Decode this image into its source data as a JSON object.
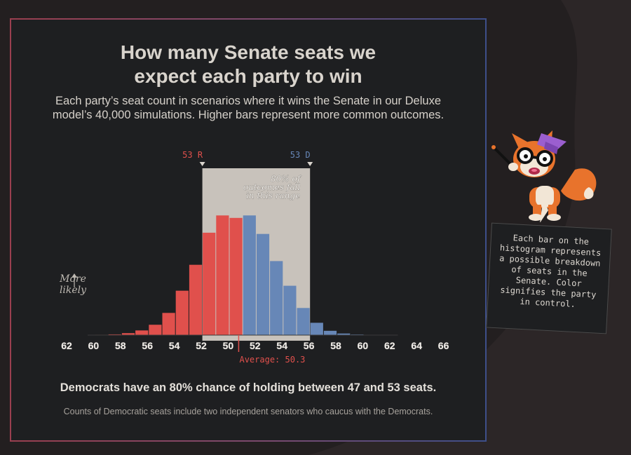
{
  "title_line1": "How many Senate seats we",
  "title_line2": "expect each party to win",
  "subtitle_line1": "Each party’s seat count in scenarios where it wins the Senate in our Deluxe",
  "subtitle_line2": "model’s 40,000 simulations. Higher bars represent more common outcomes.",
  "headline": "Democrats have an 80% chance of holding between 47 and 53 seats.",
  "footnote": "Counts of Democratic seats include two independent senators who caucus with the Democrats.",
  "more_likely_line1": "More",
  "more_likely_line2": "likely",
  "note_text": "Each bar on the histogram represents a possible breakdown of seats in the Senate. Color signifies the party in control.",
  "colors": {
    "republican": "#e0504c",
    "democrat": "#6787b7",
    "range": "#c8c2bb",
    "average": "#e0504c"
  },
  "chart_data": {
    "type": "bar",
    "x_label": "",
    "y_label": "",
    "categories": [
      "R 61",
      "R 60",
      "R 59",
      "R 58",
      "R 57",
      "R 56",
      "R 55",
      "R 54",
      "R 53",
      "R 52",
      "R 51",
      "D 50",
      "D 51",
      "D 52",
      "D 53",
      "D 54",
      "D 55",
      "D 56",
      "D 57",
      "D 58",
      "D 59",
      "D 60"
    ],
    "party": [
      "R",
      "R",
      "R",
      "R",
      "R",
      "R",
      "R",
      "R",
      "R",
      "R",
      "R",
      "D",
      "D",
      "D",
      "D",
      "D",
      "D",
      "D",
      "D",
      "D",
      "D",
      "D"
    ],
    "values": [
      0.3,
      0.6,
      1.6,
      3.8,
      8.4,
      18,
      36,
      57,
      83,
      97,
      95,
      97,
      82,
      60,
      40,
      22,
      10,
      3.5,
      1.3,
      0.5,
      0.2,
      0.1
    ],
    "tick_labels": [
      "62",
      "60",
      "58",
      "56",
      "54",
      "52",
      "50",
      "52",
      "54",
      "56",
      "58",
      "60",
      "62",
      "64",
      "66"
    ],
    "range_left_label": "53 R",
    "range_right_label": "53 D",
    "range_note_line1": "80% of",
    "range_note_line2": "outcomes fall",
    "range_note_line3": "in this range",
    "range_from_index": 8,
    "range_to_index": 15,
    "average_label": "Average: 50.3",
    "average_position": 10.7,
    "y_range": [
      0,
      100
    ]
  }
}
